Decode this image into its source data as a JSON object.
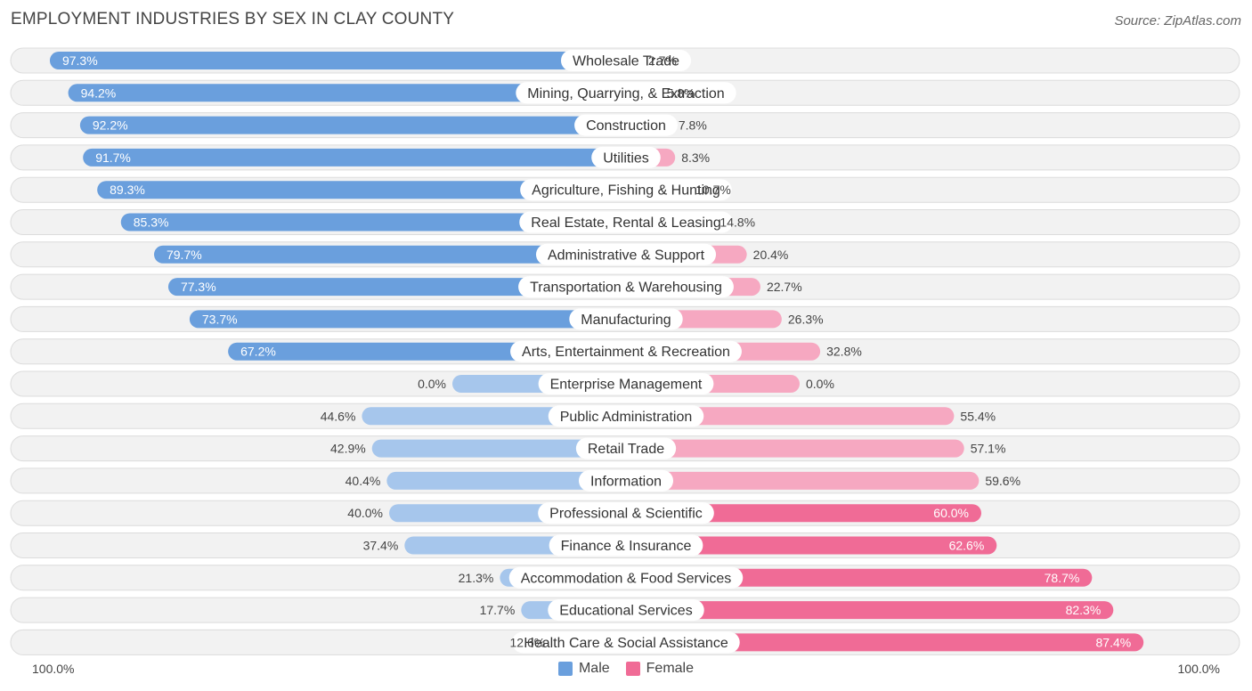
{
  "header": {
    "title": "EMPLOYMENT INDUSTRIES BY SEX IN CLAY COUNTY",
    "source": "Source: ZipAtlas.com"
  },
  "colors": {
    "male": "#6a9fdd",
    "male_light": "#a6c6ec",
    "female": "#f06b96",
    "female_light": "#f6a8c1"
  },
  "axis": {
    "left_label": "100.0%",
    "right_label": "100.0%"
  },
  "legend": {
    "male_label": "Male",
    "female_label": "Female"
  },
  "chart_data": {
    "type": "bar",
    "orientation": "diverging-horizontal",
    "title": "EMPLOYMENT INDUSTRIES BY SEX IN CLAY COUNTY",
    "xlim": [
      -100,
      100
    ],
    "categories": [
      "Wholesale Trade",
      "Mining, Quarrying, & Extraction",
      "Construction",
      "Utilities",
      "Agriculture, Fishing & Hunting",
      "Real Estate, Rental & Leasing",
      "Administrative & Support",
      "Transportation & Warehousing",
      "Manufacturing",
      "Arts, Entertainment & Recreation",
      "Enterprise Management",
      "Public Administration",
      "Retail Trade",
      "Information",
      "Professional & Scientific",
      "Finance & Insurance",
      "Accommodation & Food Services",
      "Educational Services",
      "Health Care & Social Assistance"
    ],
    "series": [
      {
        "name": "Male",
        "values": [
          97.3,
          94.2,
          92.2,
          91.7,
          89.3,
          85.3,
          79.7,
          77.3,
          73.7,
          67.2,
          0.0,
          44.6,
          42.9,
          40.4,
          40.0,
          37.4,
          21.3,
          17.7,
          12.6
        ],
        "labels": [
          "97.3%",
          "94.2%",
          "92.2%",
          "91.7%",
          "89.3%",
          "85.3%",
          "79.7%",
          "77.3%",
          "73.7%",
          "67.2%",
          "0.0%",
          "44.6%",
          "42.9%",
          "40.4%",
          "40.0%",
          "37.4%",
          "21.3%",
          "17.7%",
          "12.6%"
        ]
      },
      {
        "name": "Female",
        "values": [
          2.7,
          5.8,
          7.8,
          8.3,
          10.7,
          14.8,
          20.4,
          22.7,
          26.3,
          32.8,
          0.0,
          55.4,
          57.1,
          59.6,
          60.0,
          62.6,
          78.7,
          82.3,
          87.4
        ],
        "labels": [
          "2.7%",
          "5.8%",
          "7.8%",
          "8.3%",
          "10.7%",
          "14.8%",
          "20.4%",
          "22.7%",
          "26.3%",
          "32.8%",
          "0.0%",
          "55.4%",
          "57.1%",
          "59.6%",
          "60.0%",
          "62.6%",
          "78.7%",
          "82.3%",
          "87.4%"
        ]
      }
    ],
    "legend": [
      "Male",
      "Female"
    ],
    "legend_position": "bottom-center"
  }
}
